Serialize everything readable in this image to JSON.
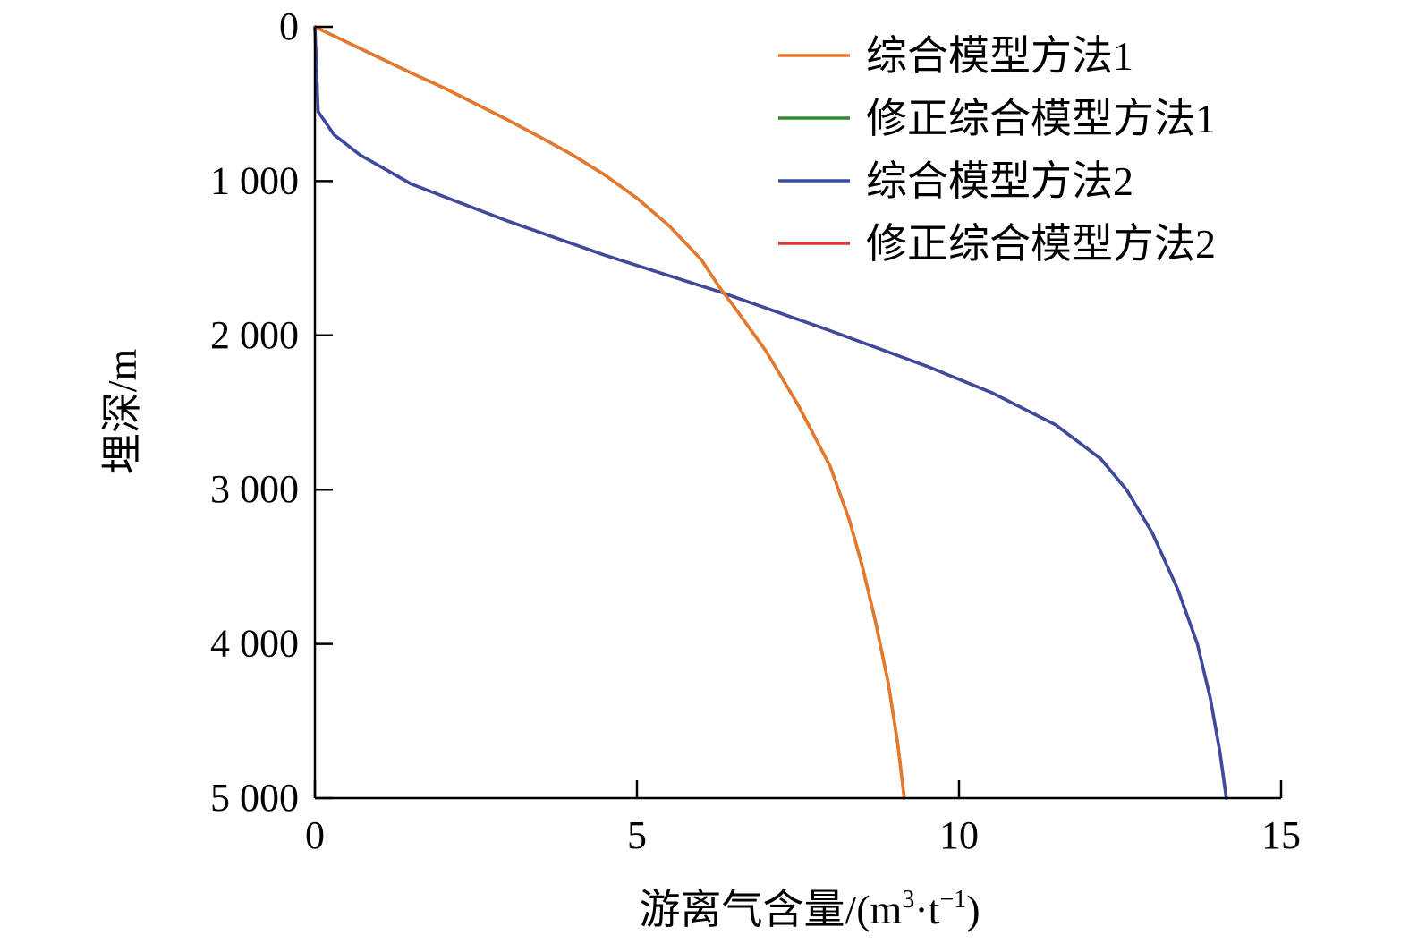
{
  "chart_data": {
    "type": "line",
    "title": "",
    "xlabel_main": "游离气含量/(m",
    "xlabel_sup1": "3",
    "xlabel_mid": "·t",
    "xlabel_sup2": "−1",
    "xlabel_end": ")",
    "ylabel": "埋深/m",
    "xlim": [
      0,
      15
    ],
    "ylim": [
      0,
      5000
    ],
    "y_inverted": true,
    "x_ticks": [
      0,
      5,
      10,
      15
    ],
    "x_tick_labels": [
      "0",
      "5",
      "10",
      "15"
    ],
    "y_ticks": [
      0,
      1000,
      2000,
      3000,
      4000,
      5000
    ],
    "y_tick_labels": [
      "0",
      "1 000",
      "2 000",
      "3 000",
      "4 000",
      "5 000"
    ],
    "grid": false,
    "legend_position": "top-right",
    "series": [
      {
        "name": "综合模型方法1",
        "color": "#e8772e",
        "x": [
          0,
          0.5,
          1,
          1.5,
          2,
          2.5,
          3,
          3.5,
          4,
          4.5,
          5,
          5.5,
          6,
          6.3,
          6.5,
          7,
          7.5,
          8,
          8.3,
          8.5,
          8.7,
          8.9,
          9.05,
          9.15
        ],
        "y": [
          0,
          100,
          200,
          300,
          395,
          500,
          605,
          715,
          830,
          960,
          1110,
          1290,
          1510,
          1700,
          1810,
          2100,
          2450,
          2850,
          3200,
          3500,
          3850,
          4250,
          4650,
          5000
        ]
      },
      {
        "name": "修正综合模型方法1",
        "color": "#2e8b2e",
        "x": [
          0,
          0.5,
          1,
          1.5,
          2,
          2.5,
          3,
          3.5,
          4,
          4.5,
          5,
          5.5,
          6,
          6.3,
          6.5,
          7,
          7.5,
          8,
          8.3,
          8.5,
          8.7,
          8.9,
          9.05,
          9.15
        ],
        "y": [
          0,
          100,
          200,
          300,
          395,
          500,
          605,
          715,
          830,
          960,
          1110,
          1290,
          1510,
          1700,
          1810,
          2100,
          2450,
          2850,
          3200,
          3500,
          3850,
          4250,
          4650,
          5000
        ]
      },
      {
        "name": "综合模型方法2",
        "color": "#3b4ca0",
        "x": [
          0,
          0.05,
          0.3,
          0.7,
          1.5,
          3,
          4.5,
          6.3,
          8,
          9.5,
          10.5,
          11.5,
          12.2,
          12.6,
          13.0,
          13.4,
          13.7,
          13.9,
          14.05,
          14.15
        ],
        "y": [
          0,
          550,
          700,
          830,
          1020,
          1260,
          1480,
          1720,
          1970,
          2200,
          2370,
          2580,
          2800,
          3000,
          3280,
          3650,
          4000,
          4350,
          4700,
          5000
        ]
      },
      {
        "name": "修正综合模型方法2",
        "color": "#d43a3a",
        "x": [
          0,
          0.05,
          0.3,
          0.7,
          1.5,
          3,
          4.5,
          6.3,
          8,
          9.5,
          10.5,
          11.5,
          12.2,
          12.6,
          13.0,
          13.4,
          13.7,
          13.9,
          14.05,
          14.15
        ],
        "y": [
          0,
          550,
          700,
          830,
          1020,
          1260,
          1480,
          1720,
          1970,
          2200,
          2370,
          2580,
          2800,
          3000,
          3280,
          3650,
          4000,
          4350,
          4700,
          5000
        ]
      }
    ]
  }
}
